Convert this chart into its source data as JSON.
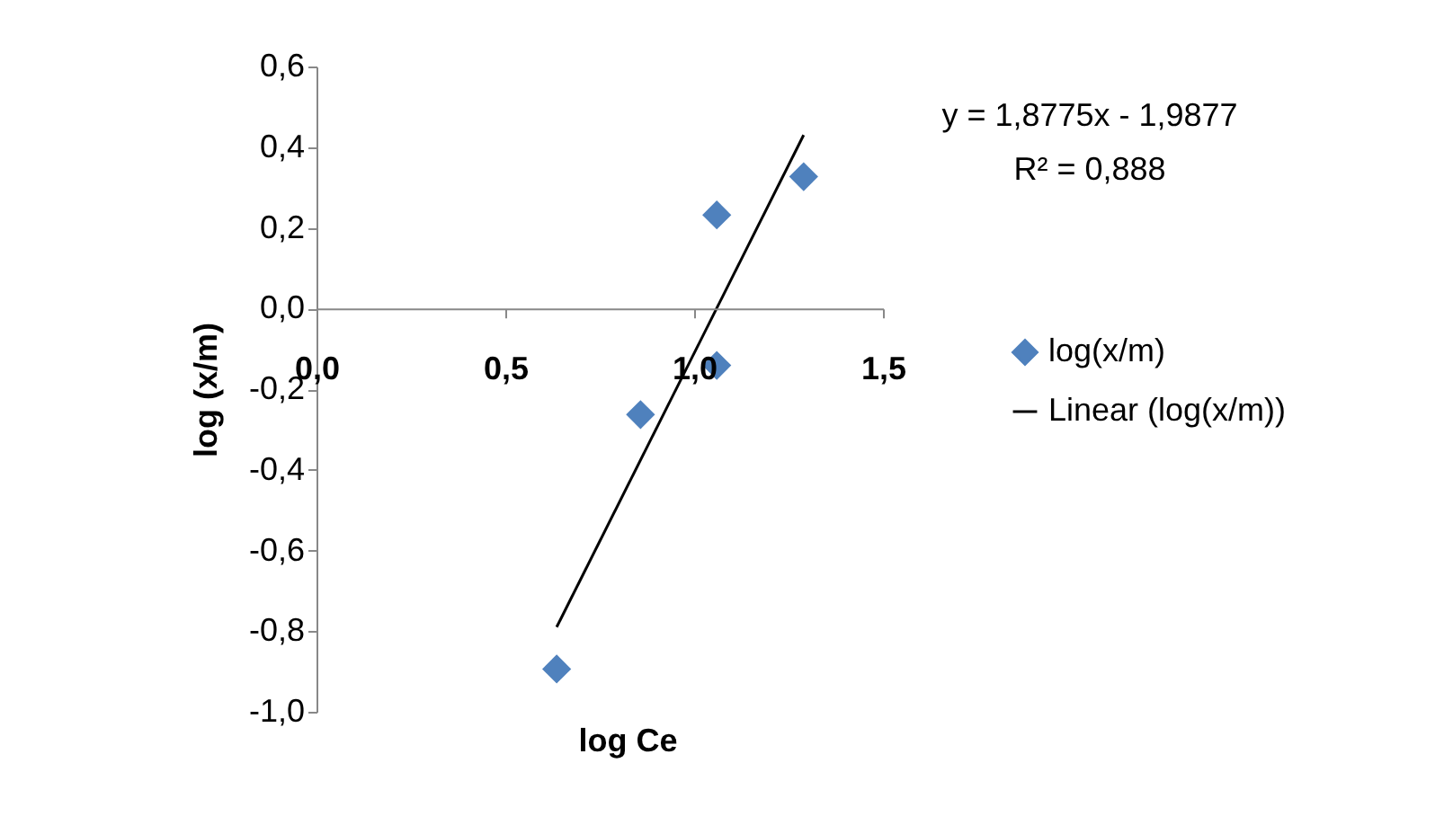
{
  "chart_data": {
    "type": "scatter",
    "xlabel": "log Ce",
    "ylabel": "log (x/m)",
    "annotations": [
      "y = 1,8775x - 1,9877",
      "R² = 0,888"
    ],
    "series": [
      {
        "name": "log(x/m)",
        "marker": "diamond",
        "color": "#4f81bd",
        "x": [
          0.636,
          0.858,
          1.06,
          1.06,
          1.29
        ],
        "values": [
          -0.894,
          -0.263,
          -0.141,
          0.232,
          0.327
        ]
      },
      {
        "name": "Linear (log(x/m))",
        "type": "line",
        "color": "#000000",
        "x": [
          0.636,
          1.29
        ],
        "values": [
          -0.79,
          0.43
        ]
      }
    ],
    "xlim": [
      0,
      1.5
    ],
    "xticks": [
      {
        "value": 0,
        "label": "0,0"
      },
      {
        "value": 0.5,
        "label": "0,5"
      },
      {
        "value": 1,
        "label": "1,0"
      },
      {
        "value": 1.5,
        "label": "1,5"
      }
    ],
    "ylim": [
      -1,
      0.6
    ],
    "yticks": [
      {
        "value": -1,
        "label": "-1,0"
      },
      {
        "value": -0.8,
        "label": "-0,8"
      },
      {
        "value": -0.6,
        "label": "-0,6"
      },
      {
        "value": -0.4,
        "label": "-0,4"
      },
      {
        "value": -0.2,
        "label": "-0,2"
      },
      {
        "value": 0,
        "label": "0,0"
      },
      {
        "value": 0.2,
        "label": "0,2"
      },
      {
        "value": 0.4,
        "label": "0,4"
      },
      {
        "value": 0.6,
        "label": "0,6"
      }
    ],
    "legend": "right",
    "grid": false
  }
}
